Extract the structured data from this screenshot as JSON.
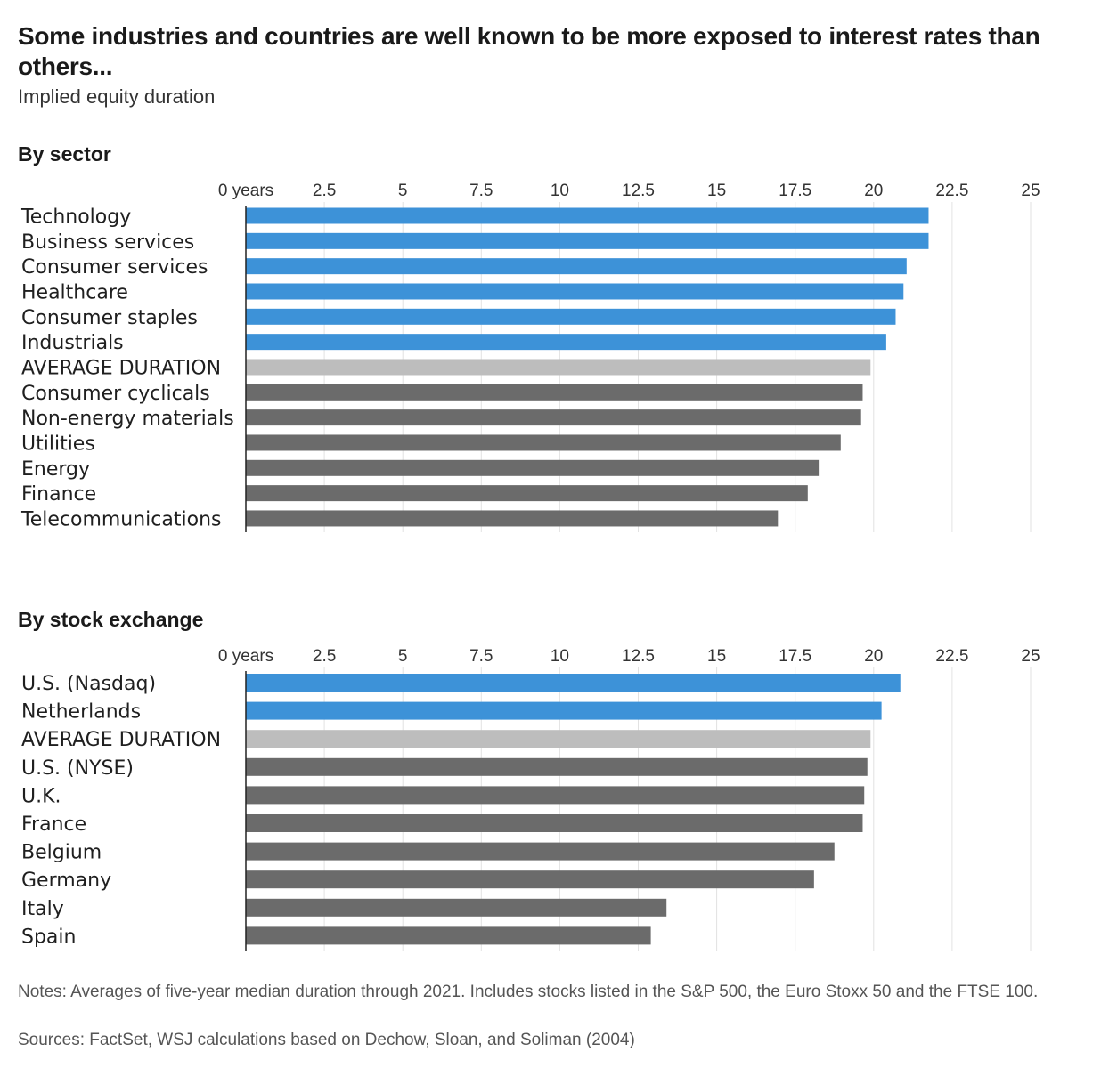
{
  "header": {
    "title": "Some industries and countries are well known to be more exposed to interest rates than others...",
    "subtitle": "Implied equity duration"
  },
  "colors": {
    "highlight": "#3d92d8",
    "average": "#bdbdbd",
    "other": "#6b6b6b",
    "grid": "#e2e2e2",
    "axis": "#222222"
  },
  "chart_data": [
    {
      "type": "bar",
      "orientation": "horizontal",
      "title": "By sector",
      "xlim": [
        0,
        25
      ],
      "ticks": [
        0,
        2.5,
        5,
        7.5,
        10,
        12.5,
        15,
        17.5,
        20,
        22.5,
        25
      ],
      "tick_labels": [
        "0 years",
        "2.5",
        "5",
        "7.5",
        "10",
        "12.5",
        "15",
        "17.5",
        "20",
        "22.5",
        "25"
      ],
      "categories": [
        "Technology",
        "Business services",
        "Consumer services",
        "Healthcare",
        "Consumer staples",
        "Industrials",
        "AVERAGE DURATION",
        "Consumer cyclicals",
        "Non-energy materials",
        "Utilities",
        "Energy",
        "Finance",
        "Telecommunications"
      ],
      "values": [
        21.75,
        21.75,
        21.05,
        20.95,
        20.7,
        20.4,
        19.9,
        19.65,
        19.6,
        18.95,
        18.25,
        17.9,
        16.95
      ],
      "groups": [
        "highlight",
        "highlight",
        "highlight",
        "highlight",
        "highlight",
        "highlight",
        "average",
        "other",
        "other",
        "other",
        "other",
        "other",
        "other"
      ],
      "grid": true
    },
    {
      "type": "bar",
      "orientation": "horizontal",
      "title": "By stock exchange",
      "xlim": [
        0,
        25
      ],
      "ticks": [
        0,
        2.5,
        5,
        7.5,
        10,
        12.5,
        15,
        17.5,
        20,
        22.5,
        25
      ],
      "tick_labels": [
        "0 years",
        "2.5",
        "5",
        "7.5",
        "10",
        "12.5",
        "15",
        "17.5",
        "20",
        "22.5",
        "25"
      ],
      "categories": [
        "U.S. (Nasdaq)",
        "Netherlands",
        "AVERAGE DURATION",
        "U.S. (NYSE)",
        "U.K.",
        "France",
        "Belgium",
        "Germany",
        "Italy",
        "Spain"
      ],
      "values": [
        20.85,
        20.25,
        19.9,
        19.8,
        19.7,
        19.65,
        18.75,
        18.1,
        13.4,
        12.9
      ],
      "groups": [
        "highlight",
        "highlight",
        "average",
        "other",
        "other",
        "other",
        "other",
        "other",
        "other",
        "other"
      ],
      "grid": true
    }
  ],
  "footer": {
    "notes": "Notes: Averages of five-year median duration through 2021. Includes stocks listed in the S&P 500, the Euro Stoxx 50 and the FTSE 100.",
    "sources": "Sources: FactSet, WSJ calculations based on Dechow, Sloan, and Soliman (2004)"
  }
}
